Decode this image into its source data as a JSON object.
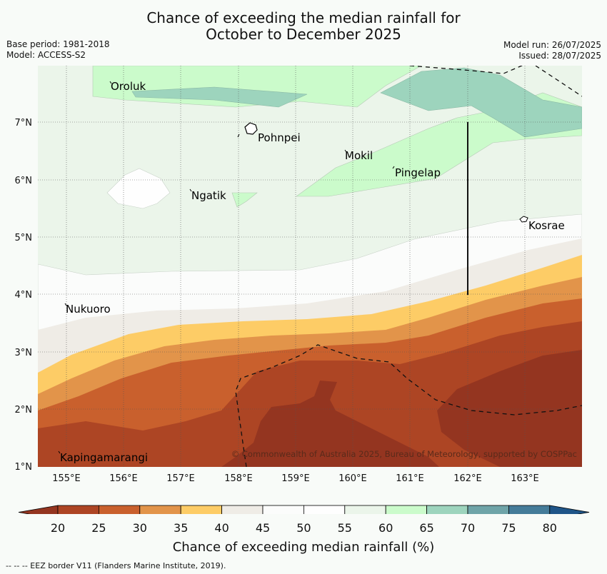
{
  "title": {
    "line1": "Chance of exceeding the median rainfall for",
    "line2": "October to December 2025"
  },
  "meta": {
    "base_period": "Base period: 1981-2018",
    "model": "Model: ACCESS-S2",
    "model_run": "Model run: 26/07/2025",
    "issued": "Issued: 28/07/2025"
  },
  "map": {
    "lon_labels": [
      "155°E",
      "156°E",
      "157°E",
      "158°E",
      "159°E",
      "160°E",
      "161°E",
      "162°E",
      "163°E"
    ],
    "lat_labels": [
      "7°N",
      "6°N",
      "5°N",
      "4°N",
      "3°N",
      "2°N",
      "1°N"
    ],
    "places": [
      "Oroluk",
      "Pohnpei",
      "Mokil",
      "Pingelap",
      "Ngatik",
      "Kosrae",
      "Nukuoro",
      "Kapingamarangi"
    ],
    "copyright": "© Commonwealth of Australia 2025, Bureau of Meteorology, supported by COSPPac"
  },
  "colorbar": {
    "ticks": [
      "20",
      "25",
      "30",
      "35",
      "40",
      "45",
      "50",
      "55",
      "60",
      "65",
      "70",
      "75",
      "80"
    ],
    "colors": [
      "#ad4524",
      "#c9602d",
      "#e2944a",
      "#fdcc66",
      "#efece6",
      "#fbfcfb",
      "#fefefe",
      "#ebf5ea",
      "#cbfbcb",
      "#9dd4bd",
      "#6fa4a8",
      "#457c99"
    ],
    "under_color": "#943520",
    "over_color": "#1f5588",
    "label": "Chance of exceeding median rainfall (%)"
  },
  "footer": "--  --  -- EEZ border V11 (Flanders Marine Institute, 2019)."
}
